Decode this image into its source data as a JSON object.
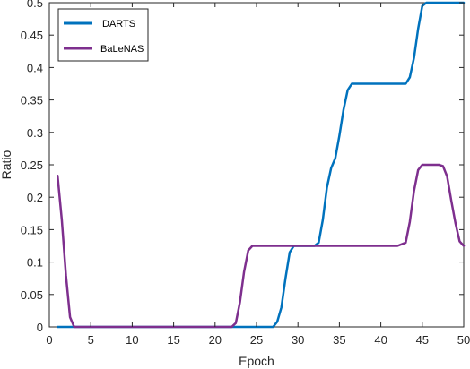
{
  "chart_data": {
    "type": "line",
    "xlabel": "Epoch",
    "ylabel": "Ratio",
    "xlim": [
      0,
      50
    ],
    "ylim": [
      0,
      0.5
    ],
    "xticks": [
      0,
      5,
      10,
      15,
      20,
      25,
      30,
      35,
      40,
      45,
      50
    ],
    "yticks": [
      0,
      0.05,
      0.1,
      0.15,
      0.2,
      0.25,
      0.3,
      0.35,
      0.4,
      0.45,
      0.5
    ],
    "xtick_labels": [
      "0",
      "5",
      "10",
      "15",
      "20",
      "25",
      "30",
      "35",
      "40",
      "45",
      "50"
    ],
    "ytick_labels": [
      "0",
      "0.05",
      "0.1",
      "0.15",
      "0.2",
      "0.25",
      "0.3",
      "0.35",
      "0.4",
      "0.45",
      "0.5"
    ],
    "grid": false,
    "legend_position": "top-left",
    "series": [
      {
        "name": "DARTS",
        "color": "#0072BD",
        "x": [
          1,
          2,
          3,
          4,
          5,
          6,
          7,
          8,
          9,
          10,
          11,
          12,
          13,
          14,
          15,
          16,
          17,
          18,
          19,
          20,
          21,
          22,
          23,
          24,
          25,
          26,
          27,
          27.5,
          28,
          28.5,
          29,
          29.5,
          30,
          31,
          32,
          32.5,
          33,
          33.5,
          34,
          34.5,
          35,
          35.5,
          36,
          36.5,
          37,
          38,
          39,
          40,
          41,
          42,
          43,
          43.5,
          44,
          44.5,
          45,
          45.5,
          46,
          47,
          48,
          49,
          50
        ],
        "y": [
          0,
          0,
          0,
          0,
          0,
          0,
          0,
          0,
          0,
          0,
          0,
          0,
          0,
          0,
          0,
          0,
          0,
          0,
          0,
          0,
          0,
          0,
          0,
          0,
          0,
          0,
          0,
          0.008,
          0.03,
          0.075,
          0.115,
          0.125,
          0.125,
          0.125,
          0.125,
          0.13,
          0.165,
          0.215,
          0.245,
          0.26,
          0.295,
          0.335,
          0.365,
          0.375,
          0.375,
          0.375,
          0.375,
          0.375,
          0.375,
          0.375,
          0.375,
          0.385,
          0.415,
          0.46,
          0.495,
          0.5,
          0.5,
          0.5,
          0.5,
          0.5,
          0.5
        ]
      },
      {
        "name": "BaLeNAS",
        "color": "#7E2F8E",
        "x": [
          1,
          1.5,
          2,
          2.5,
          3,
          4,
          5,
          6,
          7,
          8,
          9,
          10,
          11,
          12,
          13,
          14,
          15,
          16,
          17,
          18,
          19,
          20,
          21,
          22,
          22.5,
          23,
          23.5,
          24,
          24.5,
          25,
          26,
          27,
          28,
          29,
          30,
          31,
          32,
          33,
          34,
          35,
          36,
          37,
          38,
          39,
          40,
          41,
          42,
          43,
          43.5,
          44,
          44.5,
          45,
          46,
          47,
          47.5,
          48,
          48.5,
          49,
          49.5,
          50
        ],
        "y": [
          0.233,
          0.165,
          0.08,
          0.015,
          0,
          0,
          0,
          0,
          0,
          0,
          0,
          0,
          0,
          0,
          0,
          0,
          0,
          0,
          0,
          0,
          0,
          0,
          0,
          0,
          0.006,
          0.038,
          0.085,
          0.118,
          0.125,
          0.125,
          0.125,
          0.125,
          0.125,
          0.125,
          0.125,
          0.125,
          0.125,
          0.125,
          0.125,
          0.125,
          0.125,
          0.125,
          0.125,
          0.125,
          0.125,
          0.125,
          0.125,
          0.13,
          0.162,
          0.21,
          0.242,
          0.25,
          0.25,
          0.25,
          0.248,
          0.232,
          0.195,
          0.16,
          0.132,
          0.125
        ]
      }
    ]
  }
}
